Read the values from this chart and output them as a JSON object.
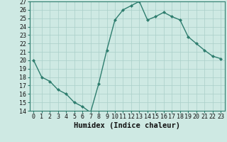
{
  "title": "",
  "xlabel": "Humidex (Indice chaleur)",
  "ylabel": "",
  "x": [
    0,
    1,
    2,
    3,
    4,
    5,
    6,
    7,
    8,
    9,
    10,
    11,
    12,
    13,
    14,
    15,
    16,
    17,
    18,
    19,
    20,
    21,
    22,
    23
  ],
  "y": [
    20,
    18,
    17.5,
    16.5,
    16,
    15,
    14.5,
    13.8,
    17.2,
    21.2,
    24.8,
    26.0,
    26.5,
    27.0,
    24.8,
    25.2,
    25.7,
    25.2,
    24.8,
    22.8,
    22.0,
    21.2,
    20.5,
    20.2
  ],
  "line_color": "#2e7d6e",
  "marker": "D",
  "marker_size": 2,
  "bg_color": "#cee9e3",
  "grid_color": "#aacfc8",
  "ylim": [
    14,
    27
  ],
  "yticks": [
    14,
    15,
    16,
    17,
    18,
    19,
    20,
    21,
    22,
    23,
    24,
    25,
    26,
    27
  ],
  "xticks": [
    0,
    1,
    2,
    3,
    4,
    5,
    6,
    7,
    8,
    9,
    10,
    11,
    12,
    13,
    14,
    15,
    16,
    17,
    18,
    19,
    20,
    21,
    22,
    23
  ],
  "xlabel_fontsize": 7.5,
  "tick_fontsize": 6,
  "line_width": 1.0
}
